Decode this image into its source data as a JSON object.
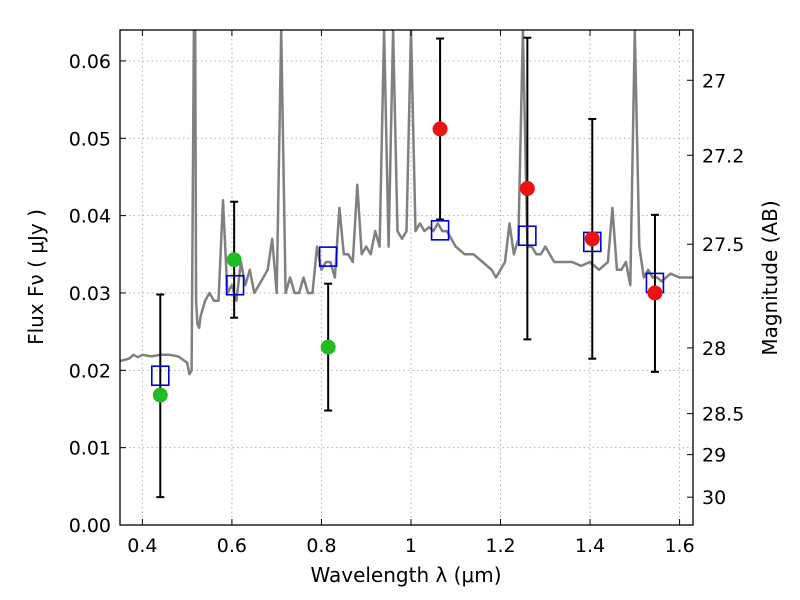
{
  "chart_data": {
    "type": "scatter",
    "xlabel": "Wavelength  λ (μm)",
    "ylabel": "Flux  Fν  ( μJy )",
    "y2label": "Magnitude (AB)",
    "xlim": [
      0.35,
      1.63
    ],
    "ylim": [
      0.0,
      0.064
    ],
    "grid": true,
    "x_ticks": [
      0.4,
      0.6,
      0.8,
      1.0,
      1.2,
      1.4,
      1.6
    ],
    "x_tick_labels": [
      "0.4",
      "0.6",
      "0.8",
      "1",
      "1.2",
      "1.4",
      "1.6"
    ],
    "y_ticks": [
      0.0,
      0.01,
      0.02,
      0.03,
      0.04,
      0.05,
      0.06
    ],
    "y_tick_labels": [
      "0.00",
      "0.01",
      "0.02",
      "0.03",
      "0.04",
      "0.05",
      "0.06"
    ],
    "y2_ticks": [
      {
        "label": "27",
        "flux": 0.0575
      },
      {
        "label": "27.2",
        "flux": 0.0478
      },
      {
        "label": "27.5",
        "flux": 0.0363
      },
      {
        "label": "28",
        "flux": 0.0229
      },
      {
        "label": "28.5",
        "flux": 0.0144
      },
      {
        "label": "29",
        "flux": 0.0091
      },
      {
        "label": "30",
        "flux": 0.0036
      }
    ],
    "colors": {
      "spectrum": "#808080",
      "green": "#22bb22",
      "red": "#ee1111",
      "model": "#0000cc",
      "errorbar": "#000000",
      "grid": "#b0b0b0"
    },
    "spectrum": {
      "name": "",
      "x": [
        0.35,
        0.37,
        0.38,
        0.39,
        0.4,
        0.42,
        0.44,
        0.46,
        0.48,
        0.5,
        0.505,
        0.51,
        0.515,
        0.518,
        0.52,
        0.523,
        0.527,
        0.53,
        0.54,
        0.55,
        0.56,
        0.57,
        0.58,
        0.59,
        0.6,
        0.61,
        0.62,
        0.63,
        0.64,
        0.65,
        0.66,
        0.67,
        0.68,
        0.69,
        0.7,
        0.71,
        0.72,
        0.73,
        0.74,
        0.75,
        0.76,
        0.77,
        0.78,
        0.79,
        0.8,
        0.81,
        0.82,
        0.83,
        0.84,
        0.85,
        0.86,
        0.87,
        0.88,
        0.89,
        0.9,
        0.91,
        0.92,
        0.93,
        0.94,
        0.95,
        0.96,
        0.97,
        0.98,
        0.99,
        1.0,
        1.01,
        1.02,
        1.03,
        1.04,
        1.05,
        1.06,
        1.07,
        1.08,
        1.09,
        1.1,
        1.12,
        1.14,
        1.16,
        1.18,
        1.19,
        1.2,
        1.21,
        1.22,
        1.23,
        1.24,
        1.25,
        1.26,
        1.27,
        1.28,
        1.29,
        1.3,
        1.32,
        1.34,
        1.36,
        1.38,
        1.4,
        1.42,
        1.44,
        1.45,
        1.46,
        1.47,
        1.48,
        1.49,
        1.5,
        1.51,
        1.52,
        1.53,
        1.54,
        1.55,
        1.56,
        1.58,
        1.6,
        1.62,
        1.63
      ],
      "y": [
        0.0212,
        0.0215,
        0.022,
        0.0217,
        0.022,
        0.0218,
        0.022,
        0.022,
        0.0218,
        0.021,
        0.0195,
        0.02,
        0.064,
        0.064,
        0.029,
        0.026,
        0.0255,
        0.027,
        0.029,
        0.03,
        0.029,
        0.029,
        0.042,
        0.03,
        0.031,
        0.029,
        0.034,
        0.031,
        0.033,
        0.03,
        0.031,
        0.032,
        0.033,
        0.037,
        0.03,
        0.064,
        0.03,
        0.032,
        0.03,
        0.03,
        0.032,
        0.03,
        0.03,
        0.036,
        0.033,
        0.034,
        0.034,
        0.032,
        0.041,
        0.035,
        0.035,
        0.034,
        0.044,
        0.035,
        0.036,
        0.035,
        0.038,
        0.036,
        0.064,
        0.036,
        0.064,
        0.038,
        0.037,
        0.038,
        0.064,
        0.038,
        0.039,
        0.038,
        0.0385,
        0.038,
        0.039,
        0.038,
        0.038,
        0.037,
        0.036,
        0.035,
        0.035,
        0.034,
        0.033,
        0.032,
        0.033,
        0.034,
        0.039,
        0.035,
        0.037,
        0.064,
        0.036,
        0.036,
        0.035,
        0.035,
        0.036,
        0.034,
        0.034,
        0.034,
        0.0335,
        0.034,
        0.033,
        0.034,
        0.041,
        0.033,
        0.033,
        0.034,
        0.031,
        0.064,
        0.036,
        0.032,
        0.033,
        0.032,
        0.032,
        0.0315,
        0.0325,
        0.032,
        0.032,
        0.032
      ]
    },
    "green_points": {
      "name": "",
      "points": [
        {
          "x": 0.44,
          "y": 0.0168,
          "err_lo": 0.0036,
          "err_hi": 0.0298
        },
        {
          "x": 0.605,
          "y": 0.0343,
          "err_lo": 0.0268,
          "err_hi": 0.0418
        },
        {
          "x": 0.815,
          "y": 0.023,
          "err_lo": 0.0148,
          "err_hi": 0.0312
        }
      ]
    },
    "red_points": {
      "name": "",
      "points": [
        {
          "x": 1.065,
          "y": 0.0512,
          "err_lo": 0.0395,
          "err_hi": 0.0629
        },
        {
          "x": 1.26,
          "y": 0.0435,
          "err_lo": 0.024,
          "err_hi": 0.063
        },
        {
          "x": 1.405,
          "y": 0.037,
          "err_lo": 0.0215,
          "err_hi": 0.0525
        },
        {
          "x": 1.545,
          "y": 0.03,
          "err_lo": 0.0198,
          "err_hi": 0.0401
        }
      ]
    },
    "model_points": {
      "name": "",
      "points": [
        {
          "x": 0.44,
          "y": 0.0193
        },
        {
          "x": 0.607,
          "y": 0.031
        },
        {
          "x": 0.815,
          "y": 0.0347
        },
        {
          "x": 1.065,
          "y": 0.0381
        },
        {
          "x": 1.26,
          "y": 0.0374
        },
        {
          "x": 1.405,
          "y": 0.0366
        },
        {
          "x": 1.545,
          "y": 0.0313
        }
      ]
    }
  }
}
